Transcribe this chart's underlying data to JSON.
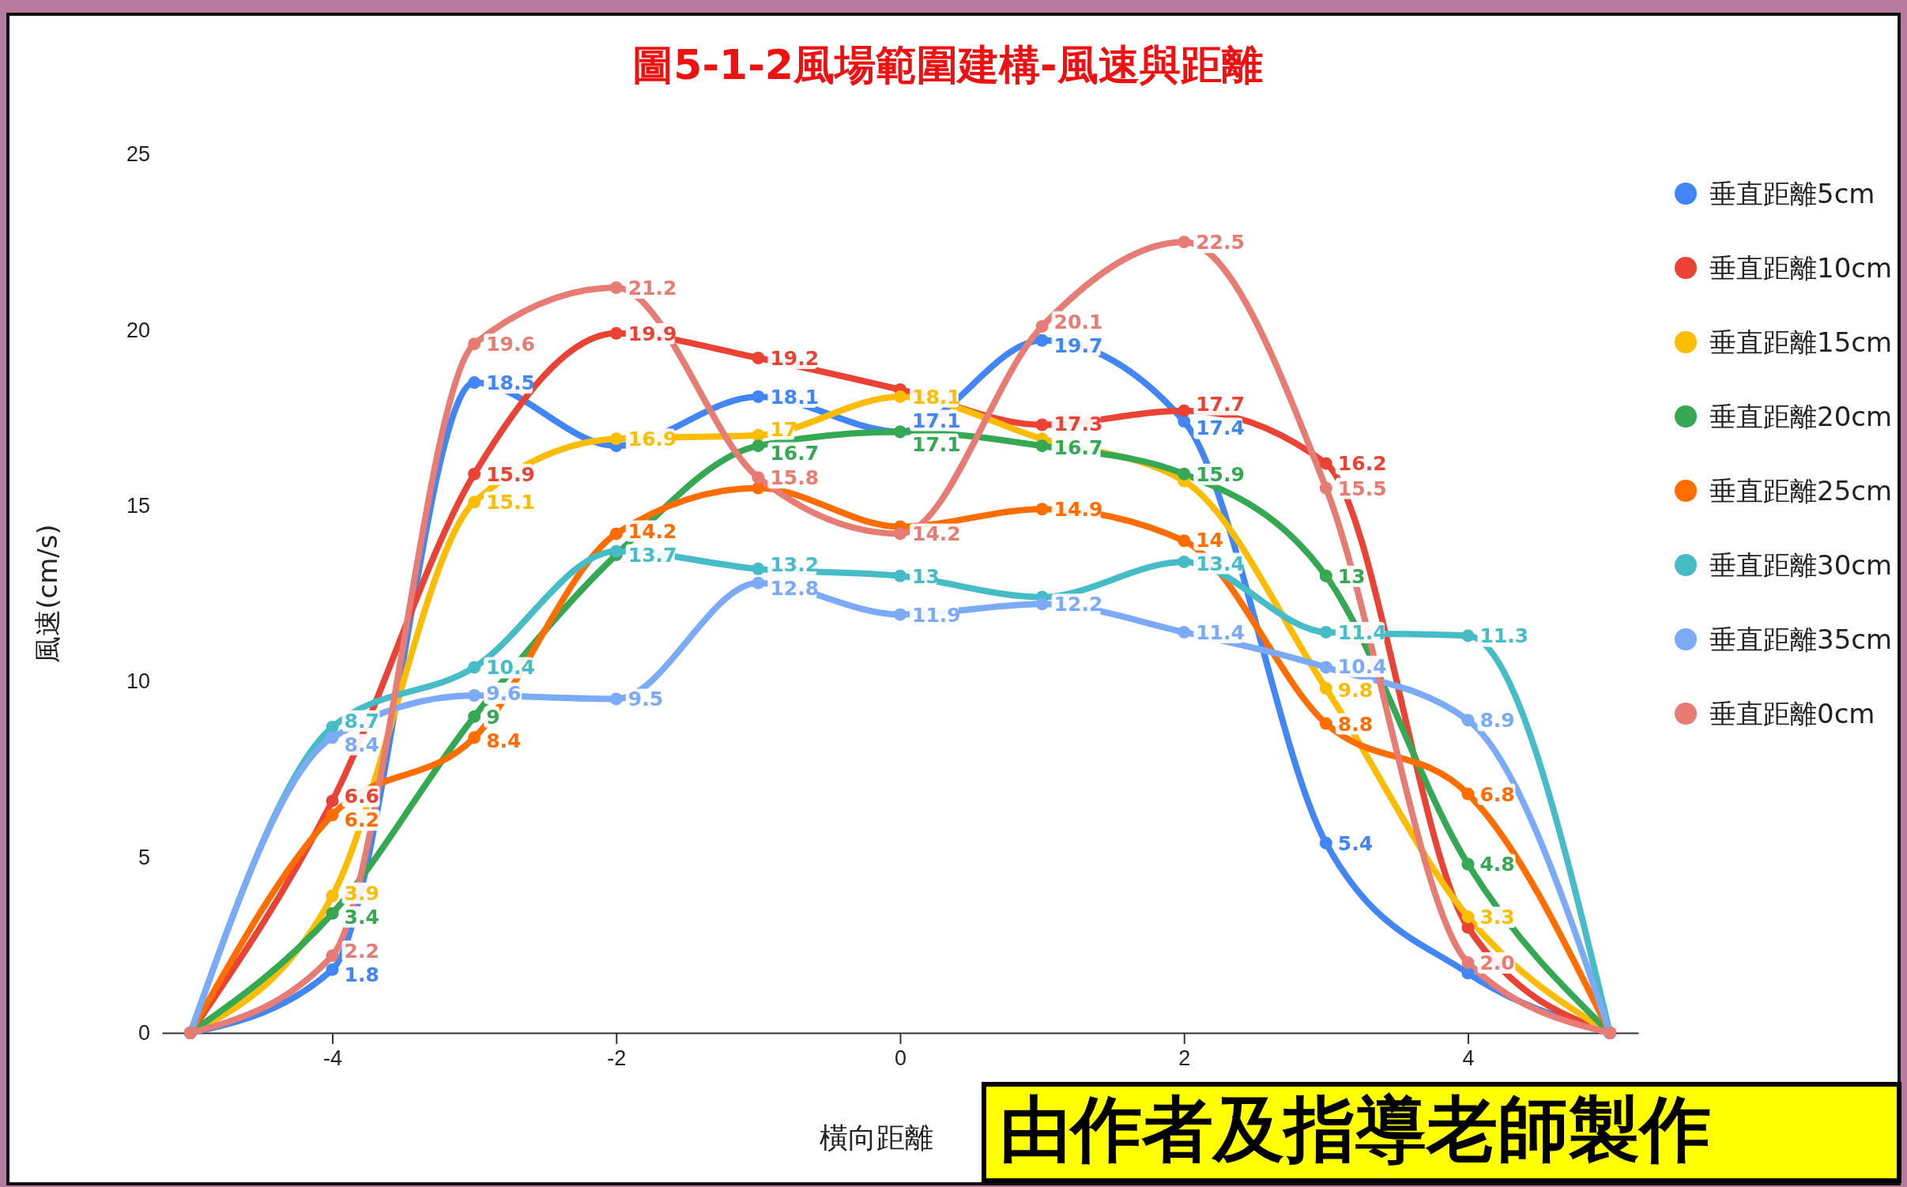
{
  "chart_data": {
    "type": "line",
    "title": "圖5-1-2風場範圍建構-風速與距離",
    "xlabel": "橫向距離",
    "ylabel": "風速(cm/s)",
    "x": [
      -5,
      -4,
      -3,
      -2,
      -1,
      0,
      1,
      2,
      3,
      4,
      5
    ],
    "xlim": [
      -5.2,
      5.2
    ],
    "xticks": [
      -4,
      -2,
      0,
      2,
      4
    ],
    "ylim": [
      0,
      25
    ],
    "yticks": [
      0,
      5,
      10,
      15,
      20,
      25
    ],
    "grid": false,
    "legend": "right",
    "marker": "circle",
    "line_style": "solid",
    "annotations": [
      "由作者及指導老師製作"
    ],
    "series": [
      {
        "name": "垂直距離5cm",
        "color": "#4285f4",
        "values": [
          0,
          1.8,
          18.5,
          16.7,
          18.1,
          17.1,
          19.7,
          17.4,
          5.4,
          1.7,
          0
        ],
        "value_labels": [
          null,
          "1.8",
          "18.5",
          null,
          "18.1",
          "17.1",
          "19.7",
          "17.4",
          "5.4",
          null,
          null
        ]
      },
      {
        "name": "垂直距離10cm",
        "color": "#ea4335",
        "values": [
          0,
          6.6,
          15.9,
          19.9,
          19.2,
          18.3,
          17.3,
          17.7,
          16.2,
          3.0,
          0
        ],
        "value_labels": [
          null,
          "6.6",
          "15.9",
          "19.9",
          "19.2",
          null,
          "17.3",
          "17.7",
          "16.2",
          null,
          null
        ]
      },
      {
        "name": "垂直距離15cm",
        "color": "#fbbc04",
        "values": [
          0,
          3.9,
          15.1,
          16.9,
          17,
          18.1,
          16.9,
          15.7,
          9.8,
          3.3,
          0
        ],
        "value_labels": [
          null,
          "3.9",
          "15.1",
          "16.9",
          "17",
          "18.1",
          null,
          null,
          "9.8",
          "3.3",
          null
        ]
      },
      {
        "name": "垂直距離20cm",
        "color": "#34a853",
        "values": [
          0,
          3.4,
          9,
          13.6,
          16.7,
          17.1,
          16.7,
          15.9,
          13,
          4.8,
          0
        ],
        "value_labels": [
          null,
          "3.4",
          "9",
          null,
          "16.7",
          "17.1",
          "16.7",
          "15.9",
          "13",
          "4.8",
          null
        ]
      },
      {
        "name": "垂直距離25cm",
        "color": "#ff6d01",
        "values": [
          0,
          6.2,
          8.4,
          14.2,
          15.5,
          14.4,
          14.9,
          14,
          8.8,
          6.8,
          0
        ],
        "value_labels": [
          null,
          "6.2",
          "8.4",
          "14.2",
          null,
          null,
          "14.9",
          "14",
          "8.8",
          "6.8",
          null
        ]
      },
      {
        "name": "垂直距離30cm",
        "color": "#46bdc6",
        "values": [
          0,
          8.7,
          10.4,
          13.7,
          13.2,
          13,
          12.4,
          13.4,
          11.4,
          11.3,
          0
        ],
        "value_labels": [
          null,
          "8.7",
          "10.4",
          "13.7",
          "13.2",
          "13",
          null,
          "13.4",
          "11.4",
          "11.3",
          null
        ]
      },
      {
        "name": "垂直距離35cm",
        "color": "#7baaf7",
        "values": [
          0,
          8.4,
          9.6,
          9.5,
          12.8,
          11.9,
          12.2,
          11.4,
          10.4,
          8.9,
          0
        ],
        "value_labels": [
          null,
          "8.4",
          "9.6",
          "9.5",
          "12.8",
          "11.9",
          "12.2",
          "11.4",
          "10.4",
          "8.9",
          null
        ]
      },
      {
        "name": "垂直距離0cm",
        "color": "#e67c73",
        "values": [
          0,
          2.2,
          19.6,
          21.2,
          15.8,
          14.2,
          20.1,
          22.5,
          15.5,
          2.0,
          0
        ],
        "value_labels": [
          null,
          "2.2",
          "19.6",
          "21.2",
          "15.8",
          "14.2",
          "20.1",
          "22.5",
          "15.5",
          "2.0",
          null
        ]
      }
    ]
  }
}
